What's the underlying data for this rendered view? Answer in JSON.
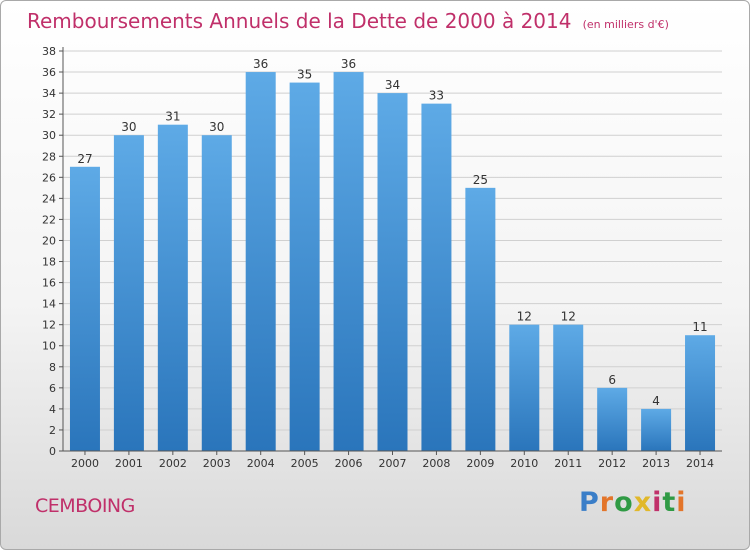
{
  "header": {
    "title": "Remboursements Annuels de la Dette de 2000 à 2014",
    "unit_note": "(en milliers d'€)"
  },
  "footer": {
    "commune": "CEMBOING",
    "logo": {
      "text": "Proxiti",
      "icon": "proxiti-logo"
    }
  },
  "colors": {
    "bar": "#4f9ad8",
    "bar_dark": "#2a75bb",
    "title": "#c0306a",
    "grid": "#d0d0d0"
  },
  "chart_data": {
    "type": "bar",
    "title": "Remboursements Annuels de la Dette de 2000 à 2014",
    "subtitle": "(en milliers d'€)",
    "categories": [
      "2000",
      "2001",
      "2002",
      "2003",
      "2004",
      "2005",
      "2006",
      "2007",
      "2008",
      "2009",
      "2010",
      "2011",
      "2012",
      "2013",
      "2014"
    ],
    "values": [
      27,
      30,
      31,
      30,
      36,
      35,
      36,
      34,
      33,
      25,
      12,
      12,
      6,
      4,
      11
    ],
    "ylim": [
      0,
      38
    ],
    "yticks": [
      0,
      2,
      4,
      6,
      8,
      10,
      12,
      14,
      16,
      18,
      20,
      22,
      24,
      26,
      28,
      30,
      32,
      34,
      36,
      38
    ],
    "grid": true,
    "legend": "none"
  }
}
